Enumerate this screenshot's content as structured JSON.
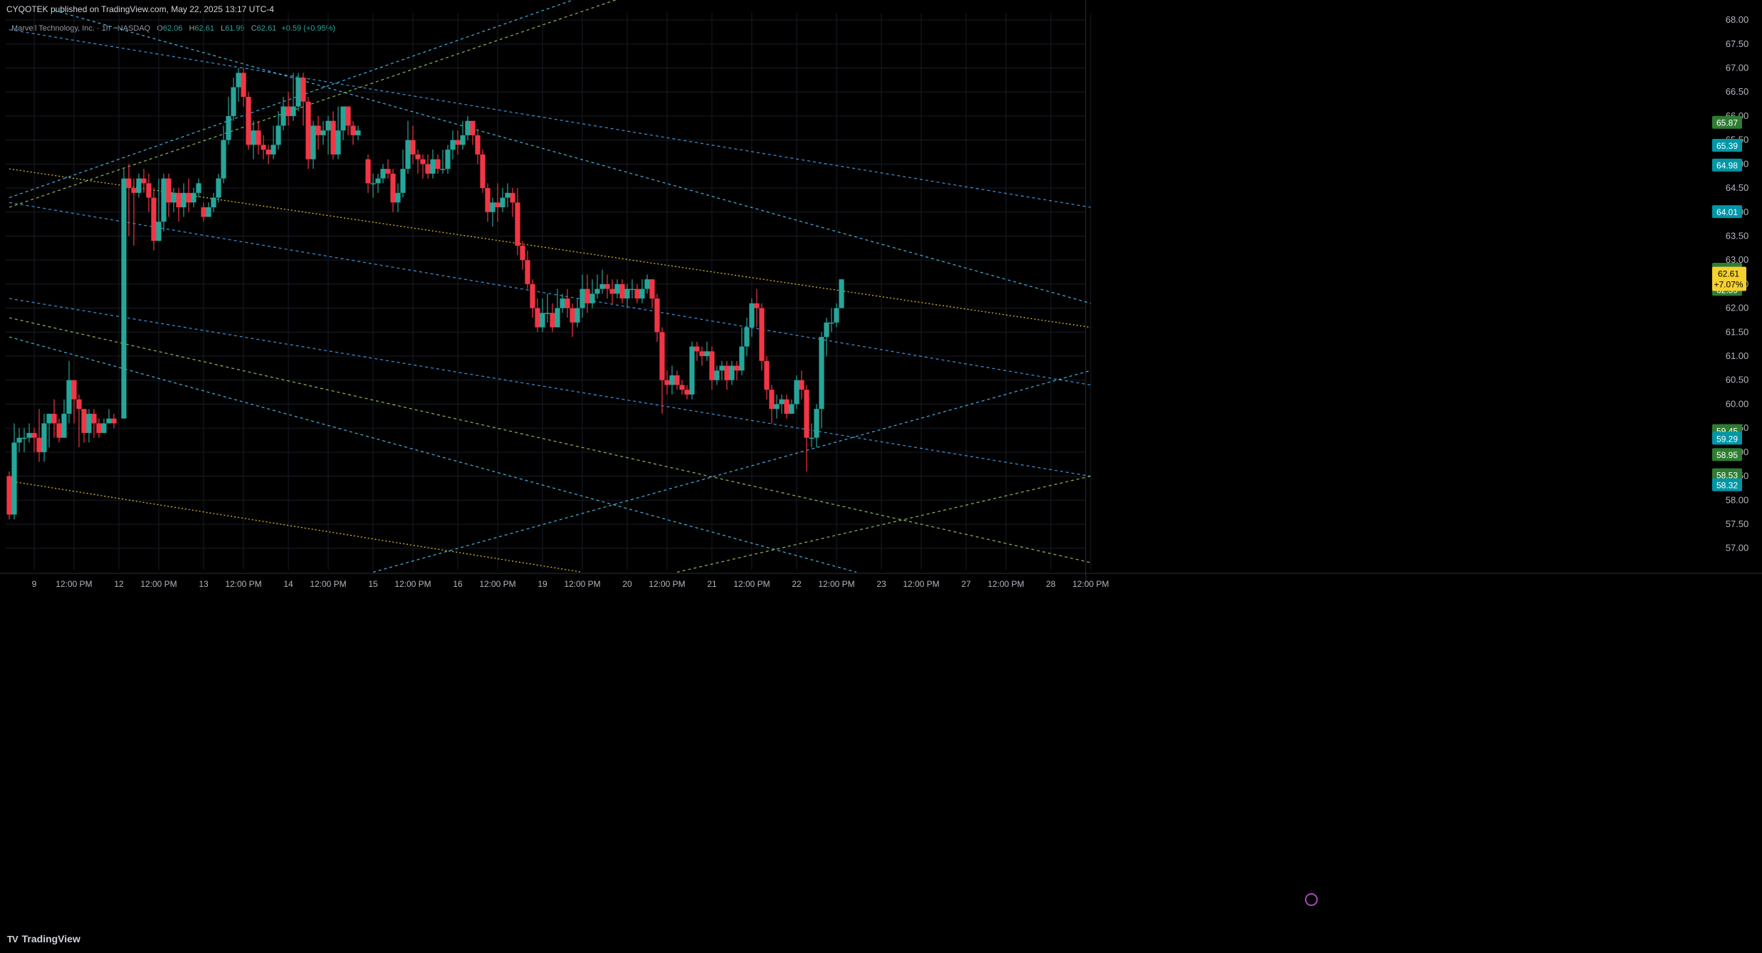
{
  "header": {
    "publish_text": "CYQOTEK published on TradingView.com, May 22, 2025 13:17 UTC-4",
    "symbol_text": "Marvell Technology, Inc. · 1h · NASDAQ",
    "o_label": "O",
    "o_value": "62.06",
    "h_label": "H",
    "h_value": "62.61",
    "l_label": "L",
    "l_value": "61.99",
    "c_label": "C",
    "c_value": "62.61",
    "change": "+0.59 (+0.95%)"
  },
  "footer": {
    "brand": "TradingView",
    "logo": "TV"
  },
  "colors": {
    "background": "#000000",
    "grid": "#1a1d26",
    "up": "#26a69a",
    "down": "#f23645",
    "axis_text": "#b2b5be",
    "yellow": "#f5d130",
    "green_badge": "#2e7d32",
    "cyan_badge": "#0097a7"
  },
  "chart_data": {
    "type": "candlestick",
    "interval": "1h",
    "y_ticks": [
      "68.00",
      "67.50",
      "67.00",
      "66.50",
      "66.00",
      "65.50",
      "65.00",
      "64.50",
      "64.00",
      "63.50",
      "63.00",
      "62.50",
      "62.00",
      "61.50",
      "61.00",
      "60.50",
      "60.00",
      "59.50",
      "59.00",
      "58.50",
      "58.00",
      "57.50",
      "57.00"
    ],
    "ylim": [
      56.55,
      68.15
    ],
    "x_ticks": [
      "9",
      "12:00 PM",
      "12",
      "12:00 PM",
      "13",
      "12:00 PM",
      "14",
      "12:00 PM",
      "15",
      "12:00 PM",
      "16",
      "12:00 PM",
      "19",
      "12:00 PM",
      "20",
      "12:00 PM",
      "21",
      "12:00 PM",
      "22",
      "12:00 PM",
      "23",
      "12:00 PM",
      "27",
      "12:00 PM",
      "28",
      "12:00 PM"
    ],
    "x_tick_bars": [
      5,
      13,
      22,
      30,
      39,
      47,
      56,
      64,
      73,
      81,
      90,
      98,
      107,
      115,
      124,
      132,
      141,
      149,
      158,
      166,
      175,
      183,
      192,
      200,
      209,
      217
    ],
    "bar_count": 218,
    "candles": [
      [
        58.5,
        57.7,
        58.6,
        57.6
      ],
      [
        57.7,
        59.2,
        59.6,
        57.6
      ],
      [
        59.2,
        59.3,
        59.5,
        59.0
      ],
      [
        59.3,
        59.3,
        59.5,
        59.0
      ],
      [
        59.3,
        59.4,
        59.6,
        59.2
      ],
      [
        59.4,
        59.3,
        59.5,
        59.0
      ],
      [
        59.3,
        59.0,
        59.9,
        58.8
      ],
      [
        59.0,
        59.6,
        59.8,
        58.8
      ],
      [
        59.6,
        59.8,
        59.8,
        59.1
      ],
      [
        59.8,
        59.6,
        60.1,
        59.3
      ],
      [
        59.6,
        59.3,
        59.7,
        59.2
      ],
      [
        59.3,
        59.8,
        60.1,
        59.3
      ],
      [
        59.8,
        60.5,
        60.9,
        59.6
      ],
      [
        60.5,
        60.1,
        60.5,
        59.6
      ],
      [
        60.1,
        59.9,
        60.2,
        59.1
      ],
      [
        59.9,
        59.4,
        59.9,
        59.2
      ],
      [
        59.4,
        59.8,
        59.9,
        59.2
      ],
      [
        59.8,
        59.6,
        59.9,
        59.3
      ],
      [
        59.6,
        59.4,
        59.7,
        59.3
      ],
      [
        59.4,
        59.6,
        59.7,
        59.4
      ],
      [
        59.6,
        59.7,
        59.9,
        59.6
      ],
      [
        59.7,
        59.6,
        59.8,
        59.5
      ],
      [
        59.7,
        64.7,
        64.9,
        61.0
      ],
      [
        64.7,
        64.5,
        65.0,
        63.5
      ],
      [
        64.5,
        64.4,
        64.7,
        63.3
      ],
      [
        64.4,
        64.7,
        64.8,
        64.3
      ],
      [
        64.7,
        64.6,
        64.9,
        64.4
      ],
      [
        64.6,
        64.3,
        64.8,
        64.0
      ],
      [
        64.3,
        63.4,
        64.5,
        63.2
      ],
      [
        63.4,
        63.8,
        64.7,
        63.4
      ],
      [
        63.8,
        64.7,
        64.8,
        63.6
      ],
      [
        64.7,
        64.2,
        64.8,
        63.9
      ],
      [
        64.2,
        64.4,
        64.5,
        64.0
      ],
      [
        64.4,
        64.1,
        64.5,
        63.8
      ],
      [
        64.1,
        64.4,
        64.6,
        63.9
      ],
      [
        64.4,
        64.2,
        64.7,
        64.0
      ],
      [
        64.2,
        64.4,
        64.5,
        64.1
      ],
      [
        64.4,
        64.6,
        64.7,
        64.3
      ],
      [
        64.1,
        63.9,
        64.2,
        63.8
      ],
      [
        63.9,
        64.1,
        64.2,
        63.9
      ],
      [
        64.1,
        64.3,
        64.4,
        64.0
      ],
      [
        64.3,
        64.7,
        64.8,
        64.2
      ],
      [
        64.7,
        65.5,
        65.8,
        64.6
      ],
      [
        65.5,
        66.0,
        66.4,
        65.4
      ],
      [
        66.0,
        66.6,
        66.8,
        65.9
      ],
      [
        66.6,
        66.9,
        67.0,
        66.3
      ],
      [
        66.9,
        66.4,
        67.0,
        66.2
      ],
      [
        66.4,
        65.4,
        66.5,
        65.3
      ],
      [
        65.4,
        65.7,
        65.9,
        65.1
      ],
      [
        65.7,
        65.4,
        65.9,
        65.2
      ],
      [
        65.4,
        65.3,
        65.6,
        65.1
      ],
      [
        65.3,
        65.2,
        65.4,
        65.0
      ],
      [
        65.2,
        65.4,
        65.8,
        65.1
      ],
      [
        65.4,
        65.8,
        66.1,
        65.3
      ],
      [
        65.8,
        66.2,
        66.4,
        65.7
      ],
      [
        66.2,
        66.0,
        66.5,
        65.8
      ],
      [
        66.0,
        66.2,
        66.9,
        65.9
      ],
      [
        66.2,
        66.8,
        66.9,
        66.1
      ],
      [
        66.8,
        66.3,
        66.9,
        65.8
      ],
      [
        66.3,
        65.1,
        66.4,
        64.9
      ],
      [
        65.1,
        65.8,
        65.9,
        64.9
      ],
      [
        65.8,
        65.6,
        66.0,
        65.3
      ],
      [
        65.6,
        65.7,
        65.9,
        65.4
      ],
      [
        65.7,
        65.9,
        66.0,
        65.2
      ],
      [
        65.9,
        65.2,
        66.1,
        65.1
      ],
      [
        65.2,
        65.7,
        66.2,
        65.1
      ],
      [
        65.7,
        66.2,
        66.2,
        65.5
      ],
      [
        66.2,
        65.8,
        66.2,
        65.6
      ],
      [
        65.8,
        65.6,
        65.9,
        65.4
      ],
      [
        65.6,
        65.7,
        65.8,
        65.5
      ],
      [
        65.1,
        64.6,
        65.2,
        64.4
      ],
      [
        64.6,
        64.6,
        64.8,
        64.3
      ],
      [
        64.6,
        64.7,
        64.8,
        64.4
      ],
      [
        64.7,
        64.9,
        65.0,
        64.6
      ],
      [
        64.9,
        64.8,
        65.1,
        64.7
      ],
      [
        64.8,
        64.2,
        64.9,
        64.0
      ],
      [
        64.2,
        64.4,
        64.6,
        64.0
      ],
      [
        64.4,
        64.9,
        65.3,
        64.3
      ],
      [
        64.9,
        65.5,
        65.9,
        64.8
      ],
      [
        65.5,
        65.2,
        65.8,
        65.0
      ],
      [
        65.2,
        65.1,
        65.3,
        64.8
      ],
      [
        65.1,
        65.0,
        65.2,
        64.7
      ],
      [
        65.0,
        64.8,
        65.2,
        64.7
      ],
      [
        64.8,
        65.1,
        65.3,
        64.7
      ],
      [
        65.1,
        64.9,
        65.2,
        64.8
      ],
      [
        64.9,
        64.9,
        65.3,
        64.8
      ],
      [
        64.9,
        65.3,
        65.4,
        64.8
      ],
      [
        65.3,
        65.5,
        65.7,
        65.1
      ],
      [
        65.5,
        65.4,
        65.7,
        65.2
      ],
      [
        65.4,
        65.6,
        65.9,
        65.3
      ],
      [
        65.6,
        65.9,
        66.0,
        65.5
      ],
      [
        65.9,
        65.6,
        65.9,
        65.4
      ],
      [
        65.6,
        65.2,
        65.7,
        65.0
      ],
      [
        65.2,
        64.5,
        65.3,
        64.4
      ],
      [
        64.5,
        64.0,
        64.6,
        63.8
      ],
      [
        64.0,
        64.2,
        64.3,
        63.7
      ],
      [
        64.2,
        64.1,
        64.6,
        63.8
      ],
      [
        64.1,
        64.3,
        64.5,
        64.0
      ],
      [
        64.3,
        64.4,
        64.6,
        64.1
      ],
      [
        64.4,
        64.2,
        64.5,
        63.9
      ],
      [
        64.2,
        63.3,
        64.5,
        63.1
      ],
      [
        63.3,
        63.0,
        63.4,
        62.8
      ],
      [
        63.0,
        62.5,
        63.2,
        62.4
      ],
      [
        62.5,
        62.0,
        62.6,
        61.8
      ],
      [
        62.0,
        61.6,
        62.2,
        61.5
      ],
      [
        61.6,
        61.9,
        62.2,
        61.5
      ],
      [
        61.9,
        61.9,
        62.3,
        61.7
      ],
      [
        61.9,
        61.6,
        62.1,
        61.5
      ],
      [
        61.6,
        62.0,
        62.4,
        61.8
      ],
      [
        62.0,
        62.2,
        62.3,
        61.9
      ],
      [
        62.2,
        62.0,
        62.4,
        61.8
      ],
      [
        62.0,
        61.7,
        62.1,
        61.4
      ],
      [
        61.7,
        62.0,
        62.2,
        61.6
      ],
      [
        62.0,
        62.4,
        62.7,
        61.8
      ],
      [
        62.4,
        62.1,
        62.7,
        61.9
      ],
      [
        62.1,
        62.3,
        62.6,
        62.0
      ],
      [
        62.3,
        62.4,
        62.7,
        62.2
      ],
      [
        62.4,
        62.5,
        62.8,
        62.3
      ],
      [
        62.5,
        62.4,
        62.7,
        62.2
      ],
      [
        62.4,
        62.3,
        62.6,
        62.1
      ],
      [
        62.3,
        62.5,
        62.6,
        62.2
      ],
      [
        62.5,
        62.2,
        62.6,
        62.1
      ],
      [
        62.2,
        62.4,
        62.5,
        62.0
      ],
      [
        62.4,
        62.4,
        62.6,
        62.2
      ],
      [
        62.4,
        62.2,
        62.5,
        62.1
      ],
      [
        62.2,
        62.4,
        62.6,
        62.1
      ],
      [
        62.4,
        62.6,
        62.7,
        62.3
      ],
      [
        62.6,
        62.2,
        62.6,
        62.0
      ],
      [
        62.2,
        61.5,
        62.3,
        61.3
      ],
      [
        61.5,
        60.5,
        61.6,
        59.8
      ],
      [
        60.5,
        60.4,
        60.7,
        60.2
      ],
      [
        60.4,
        60.6,
        60.8,
        60.2
      ],
      [
        60.6,
        60.4,
        60.7,
        60.3
      ],
      [
        60.4,
        60.3,
        60.5,
        60.2
      ],
      [
        60.3,
        60.2,
        60.4,
        60.1
      ],
      [
        60.2,
        61.2,
        61.3,
        60.1
      ],
      [
        61.2,
        61.1,
        61.3,
        60.9
      ],
      [
        61.1,
        61.0,
        61.2,
        60.8
      ],
      [
        61.0,
        61.1,
        61.3,
        60.9
      ],
      [
        61.1,
        60.5,
        61.2,
        60.3
      ],
      [
        60.5,
        60.7,
        60.8,
        60.4
      ],
      [
        60.7,
        60.8,
        60.9,
        60.5
      ],
      [
        60.8,
        60.5,
        60.9,
        60.3
      ],
      [
        60.5,
        60.8,
        60.9,
        60.4
      ],
      [
        60.8,
        60.7,
        60.9,
        60.5
      ],
      [
        60.7,
        61.2,
        61.6,
        60.6
      ],
      [
        61.2,
        61.6,
        61.8,
        61.0
      ],
      [
        61.6,
        62.1,
        62.2,
        61.4
      ],
      [
        62.1,
        62.0,
        62.4,
        61.6
      ],
      [
        62.0,
        60.9,
        62.1,
        60.7
      ],
      [
        60.9,
        60.3,
        61.0,
        60.1
      ],
      [
        60.3,
        59.9,
        60.4,
        59.6
      ],
      [
        59.9,
        60.0,
        60.2,
        59.7
      ],
      [
        60.0,
        60.1,
        60.2,
        59.8
      ],
      [
        60.1,
        59.8,
        60.2,
        59.7
      ],
      [
        59.8,
        60.0,
        60.1,
        59.8
      ],
      [
        60.0,
        60.5,
        60.6,
        59.9
      ],
      [
        60.5,
        60.3,
        60.7,
        60.1
      ],
      [
        60.3,
        59.3,
        60.4,
        58.6
      ],
      [
        59.3,
        59.3,
        59.6,
        59.1
      ],
      [
        59.3,
        59.9,
        60.0,
        59.1
      ],
      [
        59.9,
        61.4,
        61.5,
        59.5
      ],
      [
        61.4,
        61.7,
        61.8,
        61.0
      ],
      [
        61.7,
        61.7,
        62.0,
        61.5
      ],
      [
        61.7,
        62.0,
        62.1,
        61.6
      ],
      [
        62.0,
        62.6,
        62.6,
        62.0
      ]
    ],
    "candle_start_bar": 1,
    "candle_index_map": [
      0,
      1,
      2,
      3,
      4,
      5,
      6,
      7,
      8,
      9,
      10,
      11,
      12,
      13,
      14,
      15,
      16,
      17,
      18,
      19,
      20,
      21,
      23,
      24,
      25,
      26,
      27,
      28,
      29,
      30,
      31,
      32,
      33,
      34,
      35,
      36,
      37,
      38,
      39,
      40,
      41,
      42,
      43,
      44,
      45,
      46,
      47,
      48,
      49,
      50,
      51,
      52,
      53,
      54,
      55,
      56,
      57,
      58,
      59,
      60,
      61,
      62,
      63,
      64,
      65,
      66,
      67,
      68,
      69,
      70,
      72,
      73,
      74,
      75,
      76,
      77,
      78,
      79,
      80,
      81,
      82,
      83,
      84,
      85,
      86,
      87,
      88,
      89,
      90,
      91,
      92,
      93,
      94,
      95,
      96,
      97,
      98,
      99,
      100,
      101,
      102,
      103,
      104,
      105,
      106,
      107,
      108,
      109,
      110,
      111,
      112,
      113,
      114,
      115,
      116,
      117,
      118,
      119,
      120,
      121,
      122,
      123,
      124,
      125,
      126,
      127,
      128,
      129,
      130,
      131,
      132,
      133,
      134,
      135,
      136,
      137,
      138,
      139,
      140,
      141,
      142,
      143,
      144,
      145,
      146,
      147,
      148,
      149,
      150,
      151,
      152,
      153,
      154,
      155,
      156,
      157,
      158,
      159,
      160,
      161,
      162,
      163,
      164,
      165,
      166,
      167
    ],
    "trendlines": [
      {
        "color": "#4fc3f7",
        "dash": "4,4",
        "p1": [
          0,
          64.3
        ],
        "p2": [
          217,
          72.2
        ]
      },
      {
        "color": "#9ccc65",
        "dash": "4,4",
        "p1": [
          0,
          64.1
        ],
        "p2": [
          217,
          71.8
        ]
      },
      {
        "color": "#42a5f5",
        "dash": "4,4",
        "p1": [
          0,
          67.8
        ],
        "p2": [
          217,
          64.1
        ]
      },
      {
        "color": "#4fc3f7",
        "dash": "4,4",
        "p1": [
          9,
          68.2
        ],
        "p2": [
          217,
          62.1
        ]
      },
      {
        "color": "#fdd835",
        "dash": "2,3",
        "p1": [
          0,
          64.9
        ],
        "p2": [
          217,
          61.6
        ]
      },
      {
        "color": "#42a5f5",
        "dash": "4,4",
        "p1": [
          0,
          64.2
        ],
        "p2": [
          217,
          60.4
        ]
      },
      {
        "color": "#42a5f5",
        "dash": "4,4",
        "p1": [
          0,
          62.2
        ],
        "p2": [
          217,
          58.5
        ]
      },
      {
        "color": "#9ccc65",
        "dash": "4,4",
        "p1": [
          0,
          61.8
        ],
        "p2": [
          217,
          56.7
        ]
      },
      {
        "color": "#4fc3f7",
        "dash": "4,4",
        "p1": [
          0,
          61.4
        ],
        "p2": [
          170,
          56.5
        ]
      },
      {
        "color": "#fdd835",
        "dash": "2,3",
        "p1": [
          0,
          58.4
        ],
        "p2": [
          115,
          56.5
        ]
      },
      {
        "color": "#4fc3f7",
        "dash": "4,4",
        "p1": [
          73,
          56.5
        ],
        "p2": [
          217,
          60.7
        ]
      },
      {
        "color": "#9ccc65",
        "dash": "4,4",
        "p1": [
          134,
          56.5
        ],
        "p2": [
          217,
          58.5
        ]
      }
    ],
    "price_badges": [
      {
        "text": "65.87",
        "value": 65.87,
        "color": "#2e7d32"
      },
      {
        "text": "65.39",
        "value": 65.39,
        "color": "#0097a7"
      },
      {
        "text": "64.98",
        "value": 64.98,
        "color": "#0097a7"
      },
      {
        "text": "64.01",
        "value": 64.01,
        "color": "#0097a7"
      },
      {
        "text": "62.81",
        "value": 62.81,
        "color": "#2e7d32"
      },
      {
        "text": "62.39",
        "value": 62.39,
        "color": "#2e7d32"
      },
      {
        "text": "59.45",
        "value": 59.45,
        "color": "#2e7d32"
      },
      {
        "text": "59.29",
        "value": 59.29,
        "color": "#0097a7"
      },
      {
        "text": "58.95",
        "value": 58.95,
        "color": "#2e7d32"
      },
      {
        "text": "58.53",
        "value": 58.53,
        "color": "#2e7d32"
      },
      {
        "text": "58.32",
        "value": 58.32,
        "color": "#0097a7"
      }
    ],
    "last_price": {
      "price": "62.61",
      "change": "+7.07%",
      "value": 62.61
    }
  }
}
